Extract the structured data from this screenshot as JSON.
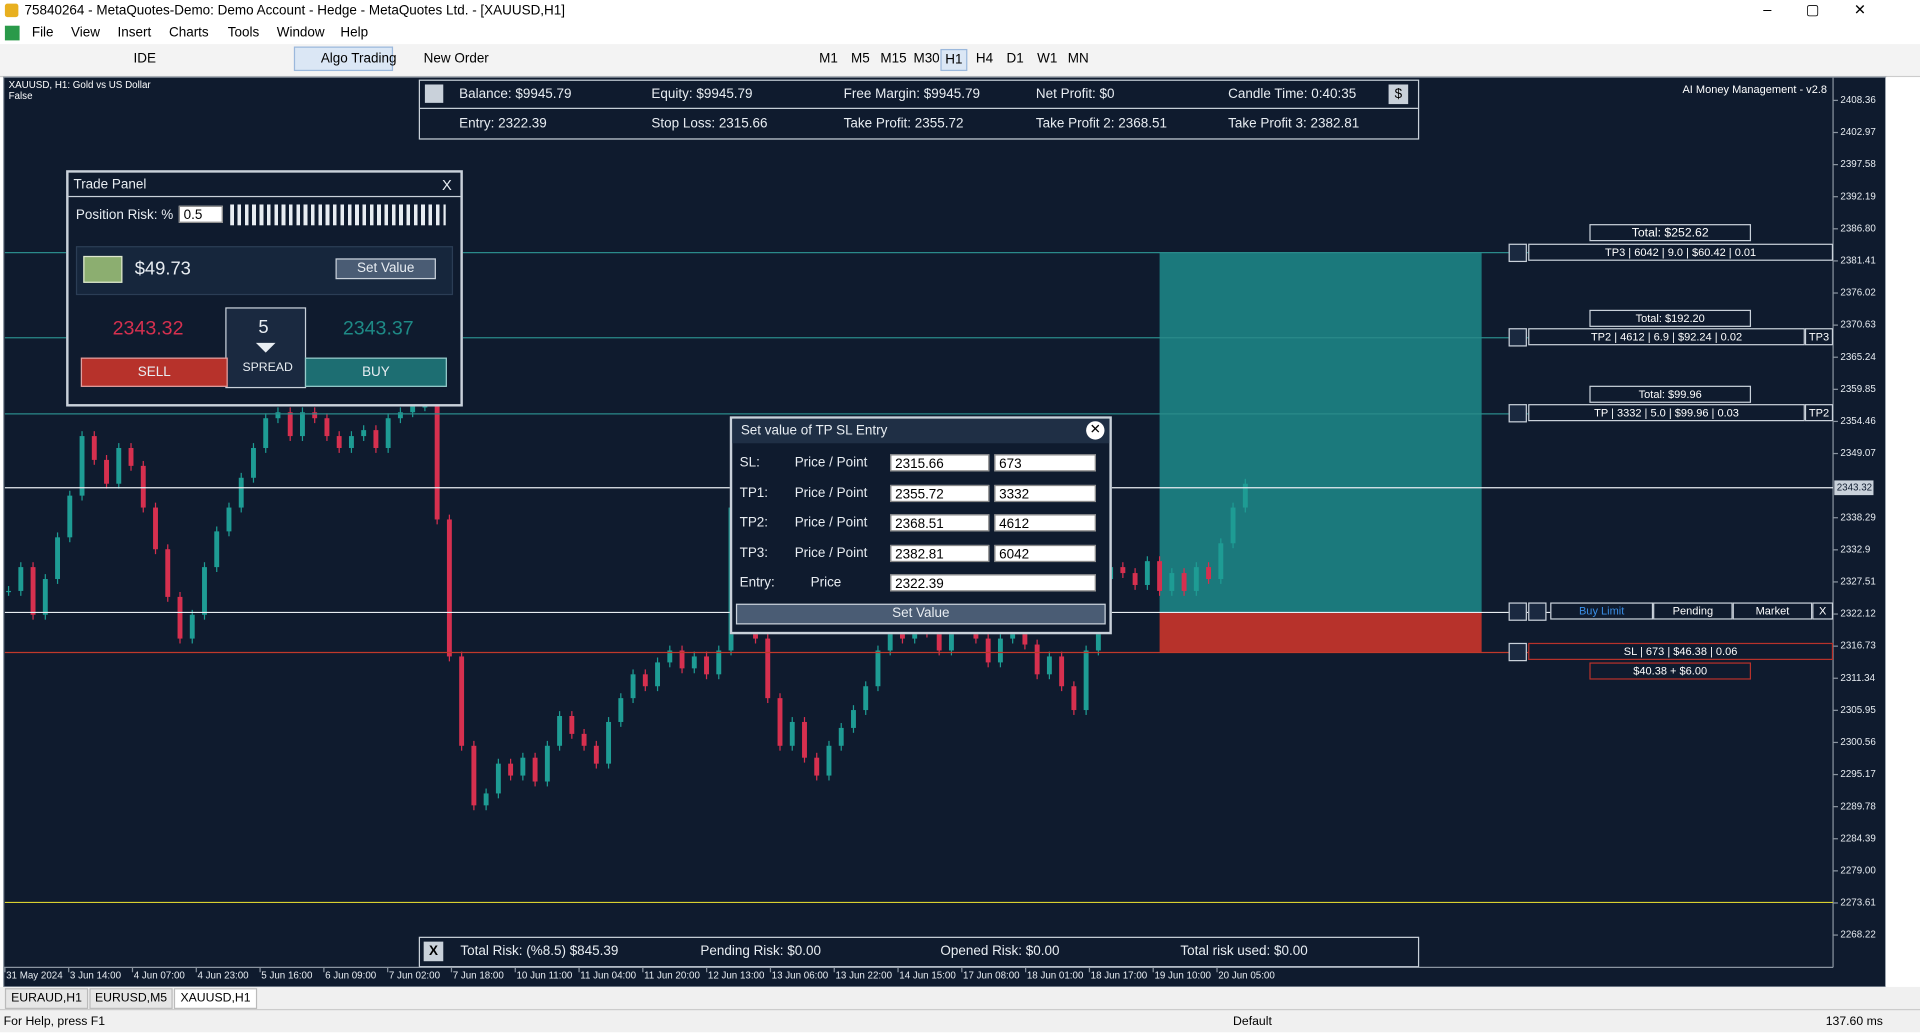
{
  "title_bar": {
    "title": "75840264 - MetaQuotes-Demo: Demo Account - Hedge - MetaQuotes Ltd. - [XAUUSD,H1]"
  },
  "menu": [
    "File",
    "View",
    "Insert",
    "Charts",
    "Tools",
    "Window",
    "Help"
  ],
  "toolbar": {
    "ide": "IDE",
    "algo": "Algo Trading",
    "new_order": "New Order",
    "timeframes": [
      "M1",
      "M5",
      "M15",
      "M30",
      "H1",
      "H4",
      "D1",
      "W1",
      "MN"
    ]
  },
  "chart_header": {
    "symbol": "XAUUSD, H1:  Gold vs US Dollar",
    "flag": "False",
    "indicator": "AI Money Management - v2.8"
  },
  "info_panel": {
    "row1": [
      "Balance: $9945.79",
      "Equity: $9945.79",
      "Free Margin: $9945.79",
      "Net Profit: $0",
      "Candle Time: 0:40:35"
    ],
    "currency_button": "$",
    "row2": [
      "Entry: 2322.39",
      "Stop Loss: 2315.66",
      "Take Profit: 2355.72",
      "Take Profit 2: 2368.51",
      "Take Profit 3: 2382.81"
    ]
  },
  "trade_panel": {
    "title": "Trade Panel",
    "close": "X",
    "risk_label": "Position Risk: %",
    "risk": "0.5",
    "amount": "$49.73",
    "set_value": "Set Value",
    "bid": "2343.32",
    "ask": "2343.37",
    "spread": "5",
    "spread_label": "SPREAD",
    "sell": "SELL",
    "buy": "BUY"
  },
  "dialog": {
    "title": "Set value of TP SL Entry",
    "rows": [
      {
        "label": "SL:",
        "kind": "Price / Point",
        "price": "2315.66",
        "point": "673"
      },
      {
        "label": "TP1:",
        "kind": "Price / Point",
        "price": "2355.72",
        "point": "3332"
      },
      {
        "label": "TP2:",
        "kind": "Price / Point",
        "price": "2368.51",
        "point": "4612"
      },
      {
        "label": "TP3:",
        "kind": "Price / Point",
        "price": "2382.81",
        "point": "6042"
      }
    ],
    "entry_label": "Entry:",
    "entry_kind": "Price",
    "entry_price": "2322.39",
    "button": "Set Value"
  },
  "level_labels": {
    "tp3_total": "Total: $252.62",
    "tp3": "TP3 | 6042 | 9.0 | $60.42 | 0.01",
    "tp2_total": "Total: $192.20",
    "tp2": "TP2 | 4612 | 6.9 | $92.24 | 0.02",
    "tp2_tag": "TP3",
    "tp_total": "Total: $99.96",
    "tp": "TP | 3332 | 5.0 | $99.96 | 0.03",
    "tp_tag": "TP2",
    "order_types": [
      "Buy Limit",
      "Pending",
      "Market"
    ],
    "order_close": "X",
    "sl": "SL | 673 | $46.38 | 0.06",
    "sl_total": "$40.38 + $6.00"
  },
  "risk_panel": {
    "close": "X",
    "items": [
      "Total Risk: (%8.5) $845.39",
      "Pending Risk: $0.00",
      "Opened Risk: $0.00",
      "Total risk used: $0.00"
    ]
  },
  "tabs": [
    "EURAUD,H1",
    "EURUSD,M5",
    "XAUUSD,H1"
  ],
  "status": {
    "help": "For Help, press F1",
    "profile": "Default",
    "ping": "137.60 ms"
  },
  "chart_data": {
    "type": "candlestick",
    "bull_color": "#1e9c94",
    "bear_color": "#d6304f",
    "values": [
      2326,
      2330,
      2322,
      2328,
      2335,
      2342,
      2352,
      2348,
      2344,
      2350,
      2347,
      2340,
      2333,
      2325,
      2318,
      2322,
      2330,
      2336,
      2340,
      2345,
      2350,
      2355,
      2356,
      2352,
      2356,
      2355,
      2352,
      2350,
      2352,
      2353,
      2350,
      2355,
      2356,
      2357,
      2357,
      2338,
      2315,
      2300,
      2290,
      2292,
      2297,
      2295,
      2298,
      2294,
      2300,
      2305,
      2302,
      2300,
      2297,
      2304,
      2308,
      2312,
      2310,
      2314,
      2316,
      2313,
      2315,
      2312,
      2316,
      2340,
      2335,
      2318,
      2308,
      2300,
      2304,
      2298,
      2295,
      2300,
      2303,
      2306,
      2310,
      2316,
      2320,
      2318,
      2321,
      2319,
      2316,
      2320,
      2322,
      2318,
      2314,
      2318,
      2320,
      2317,
      2312,
      2315,
      2310,
      2306,
      2316,
      2328,
      2330,
      2329,
      2327,
      2331,
      2326,
      2329,
      2326,
      2330,
      2328,
      2334,
      2340,
      2344
    ],
    "x_tick_labels": [
      "31 May 2024",
      "3 Jun 14:00",
      "4 Jun 07:00",
      "4 Jun 23:00",
      "5 Jun 16:00",
      "6 Jun 09:00",
      "7 Jun 02:00",
      "7 Jun 18:00",
      "10 Jun 11:00",
      "11 Jun 04:00",
      "11 Jun 20:00",
      "12 Jun 13:00",
      "13 Jun 06:00",
      "13 Jun 22:00",
      "14 Jun 15:00",
      "17 Jun 08:00",
      "18 Jun 01:00",
      "18 Jun 17:00",
      "19 Jun 10:00",
      "20 Jun 05:00"
    ],
    "ylim": [
      2262.8,
      2412.06
    ],
    "yticks": [
      2408.36,
      2402.97,
      2397.58,
      2392.19,
      {
        "value": 2386.8,
        "label": "2386.80"
      },
      2381.41,
      2376.02,
      2370.63,
      2365.24,
      2359.85,
      2354.46,
      2349.07,
      2338.29,
      2332.9,
      2327.51,
      2322.12,
      2316.73,
      2311.34,
      2305.95,
      2300.56,
      2295.17,
      2289.78,
      2284.39,
      {
        "value": 2279,
        "label": "2279.00"
      },
      2273.61,
      2268.22
    ],
    "current_price": 2343.32,
    "levels": {
      "tp3": 2382.81,
      "tp2": 2368.51,
      "tp": 2355.72,
      "entry": 2322.39,
      "sl": 2315.66
    }
  }
}
